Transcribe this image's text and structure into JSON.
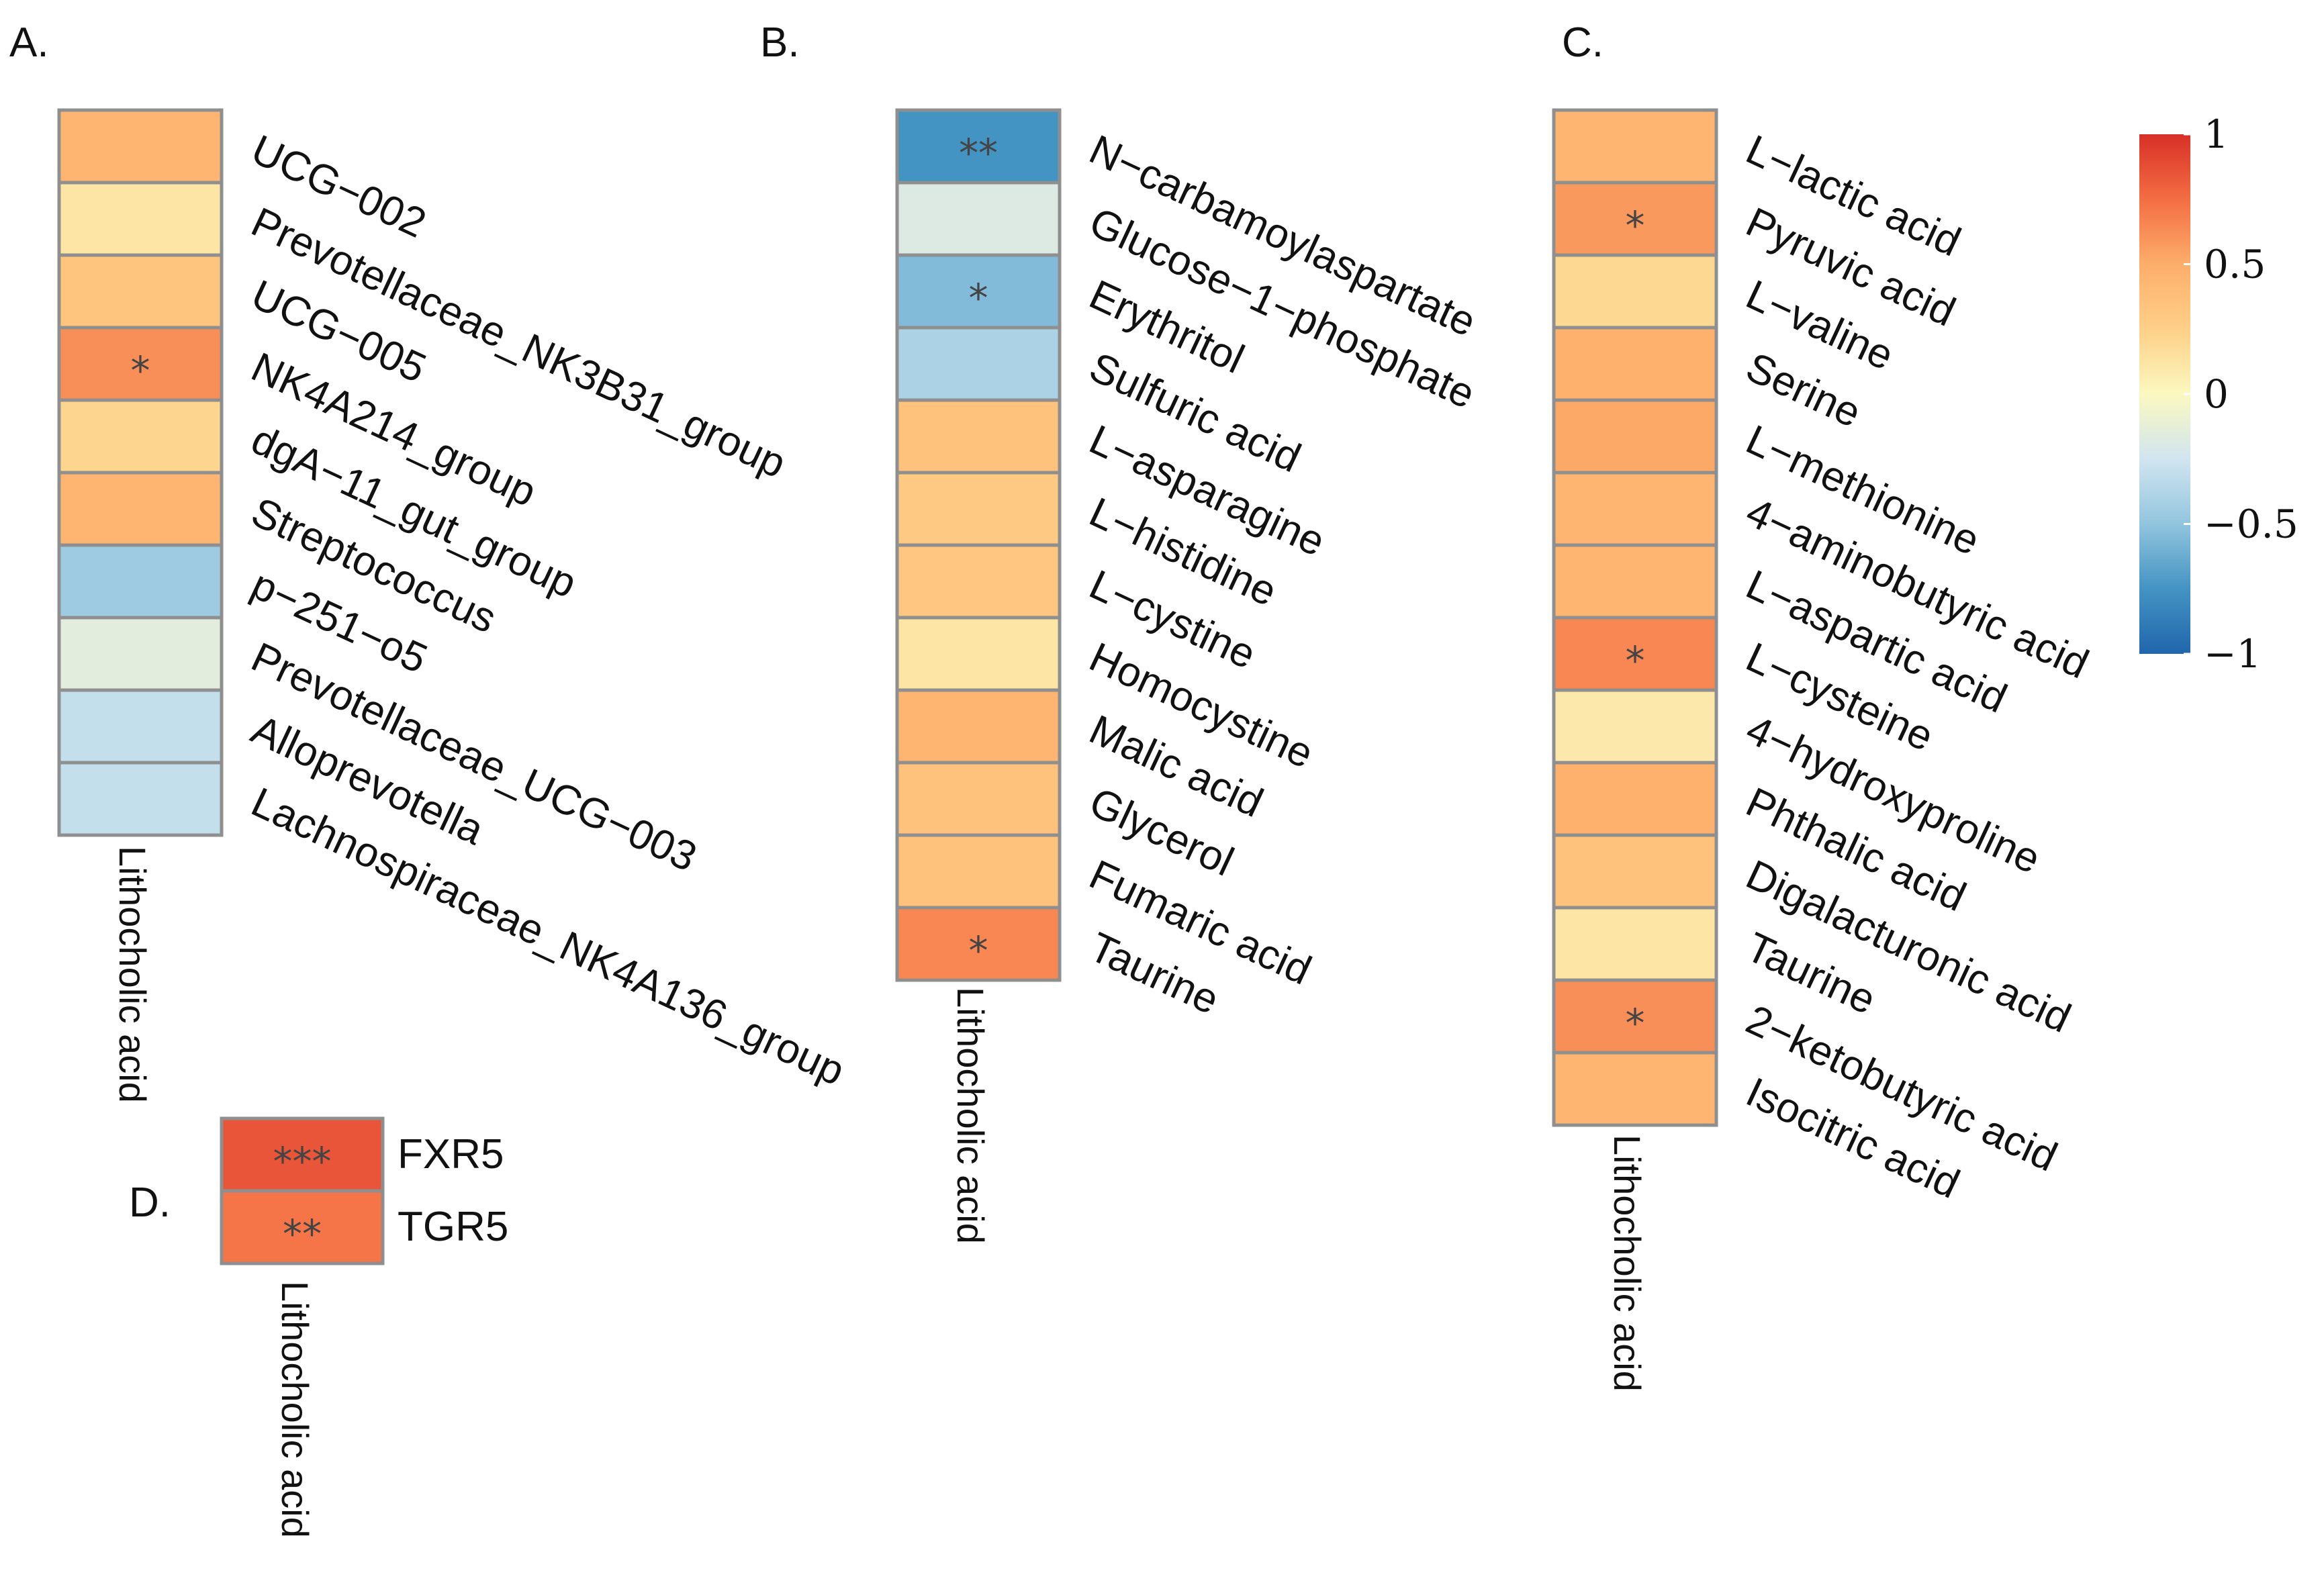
{
  "chart_data": [
    {
      "panel": "A.",
      "type": "heatmap",
      "column": "Lithocholic acid",
      "rows": [
        {
          "label": "UCG−002",
          "value": 0.45,
          "sig": ""
        },
        {
          "label": "Prevotellaceae_NK3B31_group",
          "value": 0.12,
          "sig": ""
        },
        {
          "label": "UCG−005",
          "value": 0.33,
          "sig": ""
        },
        {
          "label": "NK4A214_group",
          "value": 0.62,
          "sig": "*"
        },
        {
          "label": "dgA−11_gut_group",
          "value": 0.22,
          "sig": ""
        },
        {
          "label": "Streptococcus",
          "value": 0.45,
          "sig": ""
        },
        {
          "label": "p−251−o5",
          "value": -0.45,
          "sig": ""
        },
        {
          "label": "Prevotellaceae_UCG−003",
          "value": -0.15,
          "sig": ""
        },
        {
          "label": "Alloprevotella",
          "value": -0.3,
          "sig": ""
        },
        {
          "label": "Lachnospiraceae_NK4A136_group",
          "value": -0.3,
          "sig": ""
        }
      ]
    },
    {
      "panel": "B.",
      "type": "heatmap",
      "column": "Lithocholic acid",
      "rows": [
        {
          "label": "N−carbamoylaspartate",
          "value": -0.75,
          "sig": "**"
        },
        {
          "label": "Glucose−1−phosphate",
          "value": -0.18,
          "sig": ""
        },
        {
          "label": "Erythritol",
          "value": -0.55,
          "sig": "*"
        },
        {
          "label": "Sulfuric acid",
          "value": -0.4,
          "sig": ""
        },
        {
          "label": "L−asparagine",
          "value": 0.35,
          "sig": ""
        },
        {
          "label": "L−histidine",
          "value": 0.3,
          "sig": ""
        },
        {
          "label": "L−cystine",
          "value": 0.32,
          "sig": ""
        },
        {
          "label": "Homocystine",
          "value": 0.12,
          "sig": ""
        },
        {
          "label": "Malic acid",
          "value": 0.45,
          "sig": ""
        },
        {
          "label": "Glycerol",
          "value": 0.35,
          "sig": ""
        },
        {
          "label": "Fumaric acid",
          "value": 0.35,
          "sig": ""
        },
        {
          "label": "Taurine",
          "value": 0.65,
          "sig": "*"
        }
      ]
    },
    {
      "panel": "C.",
      "type": "heatmap",
      "column": "Lithocholic acid",
      "rows": [
        {
          "label": "L−lactic acid",
          "value": 0.45,
          "sig": ""
        },
        {
          "label": "Pyruvic acid",
          "value": 0.58,
          "sig": "*"
        },
        {
          "label": "L−valine",
          "value": 0.2,
          "sig": ""
        },
        {
          "label": "Serine",
          "value": 0.48,
          "sig": ""
        },
        {
          "label": "L−methionine",
          "value": 0.52,
          "sig": ""
        },
        {
          "label": "4−aminobutyric acid",
          "value": 0.45,
          "sig": ""
        },
        {
          "label": "L−aspartic acid",
          "value": 0.45,
          "sig": ""
        },
        {
          "label": "L−cysteine",
          "value": 0.65,
          "sig": "*"
        },
        {
          "label": "4−hydroxyproline",
          "value": 0.1,
          "sig": ""
        },
        {
          "label": "Phthalic acid",
          "value": 0.48,
          "sig": ""
        },
        {
          "label": "Digalacturonic acid",
          "value": 0.35,
          "sig": ""
        },
        {
          "label": "Taurine",
          "value": 0.12,
          "sig": ""
        },
        {
          "label": "2−ketobutyric acid",
          "value": 0.62,
          "sig": "*"
        },
        {
          "label": "Isocitric acid",
          "value": 0.45,
          "sig": ""
        }
      ]
    },
    {
      "panel": "D.",
      "type": "heatmap",
      "column": "Lithocholic acid",
      "rows": [
        {
          "label": "FXR5",
          "value": 0.85,
          "sig": "***"
        },
        {
          "label": "TGR5",
          "value": 0.72,
          "sig": "**"
        }
      ]
    }
  ],
  "legend": {
    "range": [
      -1,
      1
    ],
    "ticks": [
      {
        "value": 1,
        "label": "1"
      },
      {
        "value": 0.5,
        "label": "0.5"
      },
      {
        "value": 0,
        "label": "0"
      },
      {
        "value": -0.5,
        "label": "−0.5"
      },
      {
        "value": -1,
        "label": "−1"
      }
    ],
    "colors": [
      "#2166ac",
      "#4393c3",
      "#92c5de",
      "#d1e5f0",
      "#fbf8c0",
      "#fed088",
      "#fdae6b",
      "#f46d43",
      "#d73027"
    ]
  }
}
